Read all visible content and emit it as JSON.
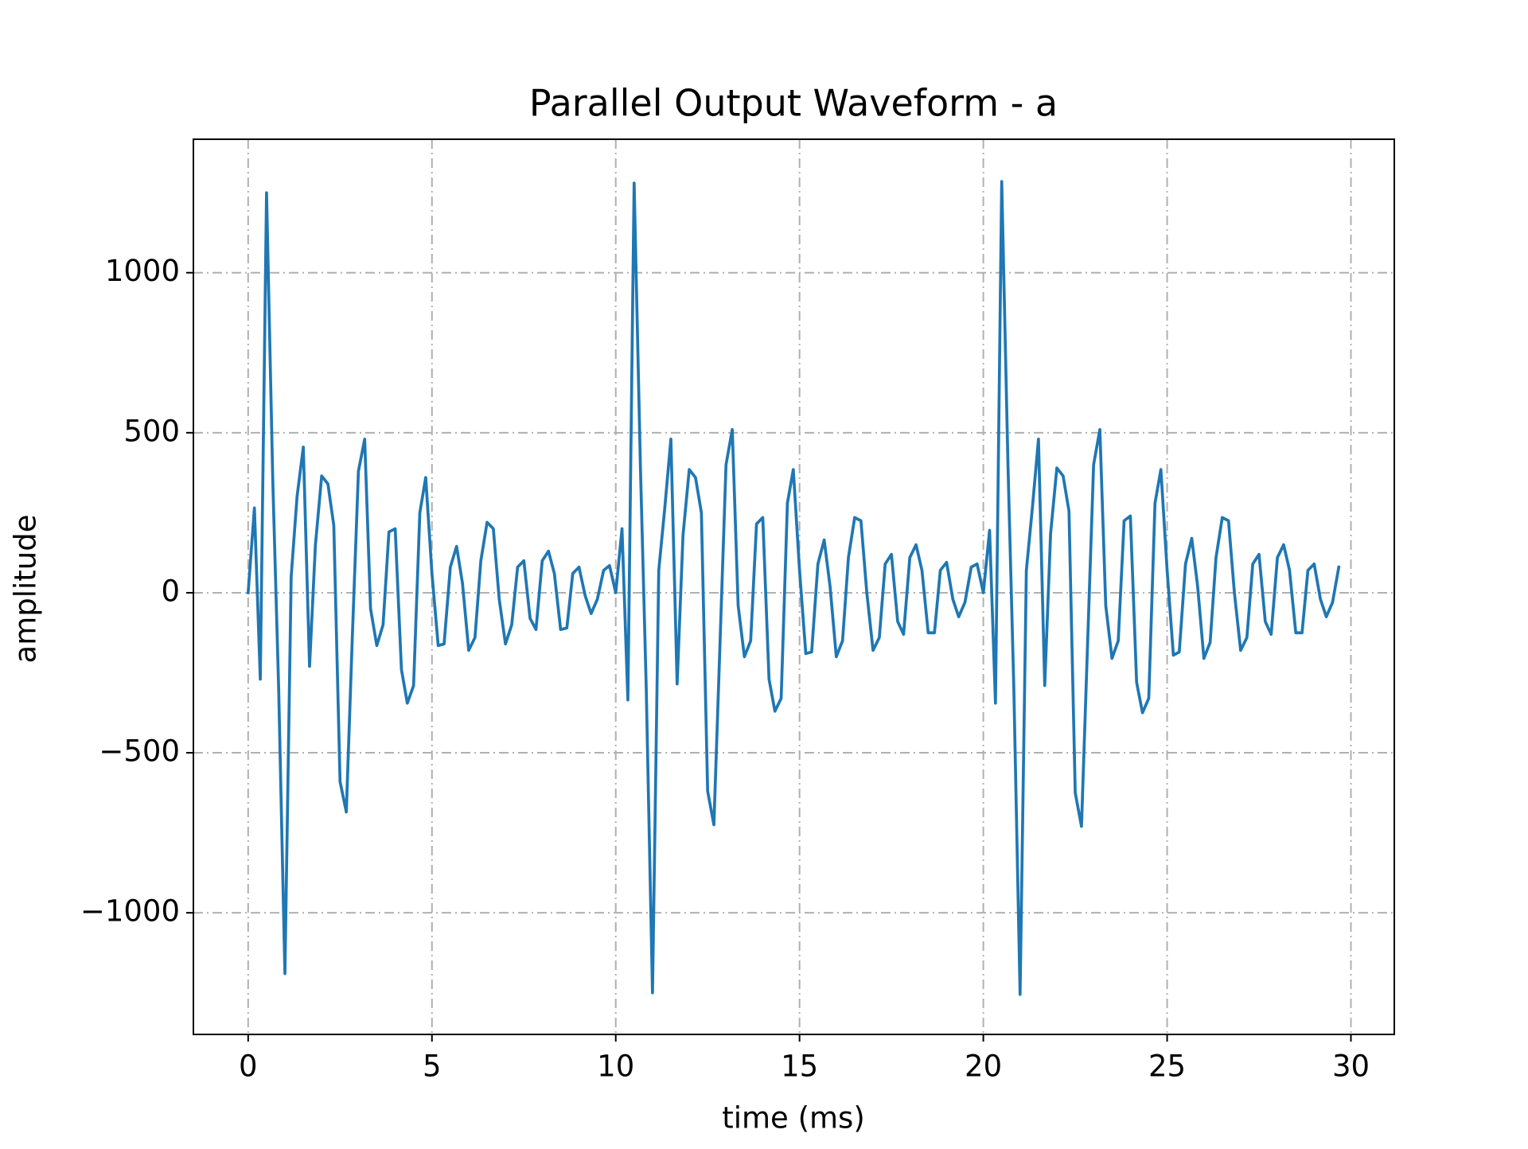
{
  "chart_data": {
    "type": "line",
    "title": "Parallel Output Waveform - a",
    "x_label": "time (ms)",
    "y_label": "amplitude",
    "xlim": [
      -1.49,
      31.18
    ],
    "ylim": [
      -1380,
      1417
    ],
    "xticks": [
      0,
      5,
      10,
      15,
      20,
      25,
      30
    ],
    "yticks": [
      {
        "value": -1000,
        "label": "−1000"
      },
      {
        "value": -500,
        "label": "−500"
      },
      0,
      500,
      1000
    ],
    "grid": true,
    "x": [
      0,
      0.17,
      0.33,
      0.5,
      0.67,
      0.83,
      1,
      1.17,
      1.33,
      1.5,
      1.67,
      1.83,
      2,
      2.17,
      2.33,
      2.5,
      2.67,
      2.83,
      3,
      3.17,
      3.33,
      3.5,
      3.67,
      3.83,
      4,
      4.17,
      4.33,
      4.5,
      4.67,
      4.83,
      5,
      5.17,
      5.33,
      5.5,
      5.67,
      5.83,
      6,
      6.17,
      6.33,
      6.5,
      6.67,
      6.83,
      7,
      7.17,
      7.33,
      7.5,
      7.67,
      7.83,
      8,
      8.17,
      8.33,
      8.5,
      8.67,
      8.83,
      9,
      9.17,
      9.33,
      9.5,
      9.67,
      9.83,
      10,
      10.17,
      10.33,
      10.5,
      10.67,
      10.83,
      11,
      11.17,
      11.33,
      11.5,
      11.67,
      11.83,
      12,
      12.17,
      12.33,
      12.5,
      12.67,
      12.83,
      13,
      13.17,
      13.33,
      13.5,
      13.67,
      13.83,
      14,
      14.17,
      14.33,
      14.5,
      14.67,
      14.83,
      15,
      15.17,
      15.33,
      15.5,
      15.67,
      15.83,
      16,
      16.17,
      16.33,
      16.5,
      16.67,
      16.83,
      17,
      17.17,
      17.33,
      17.5,
      17.67,
      17.83,
      18,
      18.17,
      18.33,
      18.5,
      18.67,
      18.83,
      19,
      19.17,
      19.33,
      19.5,
      19.67,
      19.83,
      20,
      20.17,
      20.33,
      20.5,
      20.67,
      20.83,
      21,
      21.17,
      21.33,
      21.5,
      21.67,
      21.83,
      22,
      22.17,
      22.33,
      22.5,
      22.67,
      22.83,
      23,
      23.17,
      23.33,
      23.5,
      23.67,
      23.83,
      24,
      24.17,
      24.33,
      24.5,
      24.67,
      24.83,
      25,
      25.17,
      25.33,
      25.5,
      25.67,
      25.83,
      26,
      26.17,
      26.33,
      26.5,
      26.67,
      26.83,
      27,
      27.17,
      27.33,
      27.5,
      27.67,
      27.83,
      28,
      28.17,
      28.33,
      28.5,
      28.67,
      28.83,
      29,
      29.17,
      29.33,
      29.5,
      29.67
    ],
    "series": [
      {
        "name": "a",
        "color": "#1f77b4",
        "values": [
          0,
          265,
          -270,
          1250,
          350,
          -300,
          -1190,
          50,
          300,
          455,
          -230,
          150,
          365,
          340,
          210,
          -590,
          -685,
          -150,
          380,
          480,
          -50,
          -165,
          -100,
          190,
          200,
          -240,
          -345,
          -290,
          250,
          360,
          60,
          -165,
          -160,
          80,
          145,
          30,
          -180,
          -140,
          100,
          220,
          200,
          -20,
          -160,
          -100,
          80,
          100,
          -80,
          -115,
          100,
          130,
          60,
          -115,
          -110,
          60,
          80,
          -10,
          -65,
          -20,
          70,
          85,
          0,
          200,
          -335,
          1280,
          400,
          -300,
          -1250,
          70,
          260,
          480,
          -285,
          180,
          385,
          360,
          250,
          -620,
          -725,
          -180,
          400,
          510,
          -40,
          -200,
          -150,
          215,
          235,
          -270,
          -370,
          -330,
          280,
          385,
          70,
          -190,
          -185,
          90,
          165,
          20,
          -200,
          -150,
          110,
          235,
          225,
          0,
          -180,
          -140,
          90,
          120,
          -90,
          -130,
          110,
          150,
          70,
          -125,
          -125,
          70,
          95,
          -20,
          -75,
          -30,
          80,
          90,
          0,
          195,
          -345,
          1285,
          400,
          -300,
          -1255,
          70,
          260,
          480,
          -290,
          185,
          390,
          365,
          255,
          -625,
          -730,
          -180,
          400,
          510,
          -40,
          -205,
          -150,
          225,
          240,
          -280,
          -375,
          -330,
          280,
          385,
          70,
          -195,
          -185,
          90,
          170,
          20,
          -205,
          -155,
          110,
          235,
          225,
          0,
          -180,
          -140,
          90,
          120,
          -90,
          -130,
          110,
          150,
          70,
          -125,
          -125,
          70,
          90,
          -20,
          -75,
          -30,
          80
        ]
      }
    ]
  }
}
